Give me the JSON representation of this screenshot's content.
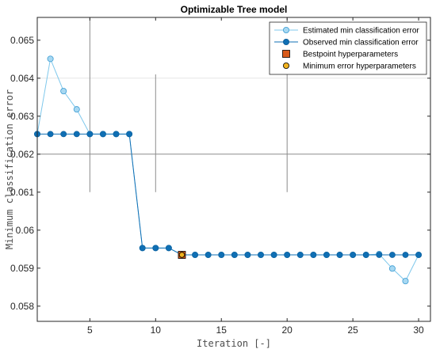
{
  "chart_data": {
    "type": "line",
    "title": "Optimizable Tree model",
    "xlabel": "Iteration [-]",
    "ylabel": "Minimum classification error",
    "xlim": [
      1,
      30.9
    ],
    "ylim": [
      0.0576,
      0.0656
    ],
    "xticks": [
      5,
      10,
      15,
      20,
      25,
      30
    ],
    "yticks": [
      0.058,
      0.059,
      0.06,
      0.061,
      0.062,
      0.063,
      0.064,
      0.065
    ],
    "ytick_labels": [
      "0.058",
      "0.059",
      "0.06",
      "0.061",
      "0.062",
      "0.063",
      "0.064",
      "0.065"
    ],
    "grid": false,
    "legend_position": "top-right",
    "series": [
      {
        "name": "Estimated min classification error",
        "color": "#7fc8ec",
        "x": [
          1,
          2,
          3,
          4,
          5,
          6,
          7,
          8,
          9,
          10,
          11,
          12,
          13,
          14,
          15,
          16,
          17,
          18,
          19,
          20,
          21,
          22,
          23,
          24,
          25,
          26,
          27,
          28,
          29,
          30
        ],
        "values": [
          0.06253,
          0.06451,
          0.06366,
          0.06318,
          0.06253,
          0.06253,
          0.06253,
          0.06253,
          0.05953,
          0.05953,
          0.05953,
          0.05935,
          0.05935,
          0.05935,
          0.05935,
          0.05935,
          0.05935,
          0.05935,
          0.05935,
          0.05935,
          0.05935,
          0.05935,
          0.05935,
          0.05935,
          0.05935,
          0.05935,
          0.05937,
          0.05899,
          0.05866,
          0.05935
        ]
      },
      {
        "name": "Observed min classification error",
        "color": "#0f6fb4",
        "x": [
          1,
          2,
          3,
          4,
          5,
          6,
          7,
          8,
          9,
          10,
          11,
          12,
          13,
          14,
          15,
          16,
          17,
          18,
          19,
          20,
          21,
          22,
          23,
          24,
          25,
          26,
          27,
          28,
          29,
          30
        ],
        "values": [
          0.06253,
          0.06253,
          0.06253,
          0.06253,
          0.06253,
          0.06253,
          0.06253,
          0.06253,
          0.05953,
          0.05953,
          0.05953,
          0.05935,
          0.05935,
          0.05935,
          0.05935,
          0.05935,
          0.05935,
          0.05935,
          0.05935,
          0.05935,
          0.05935,
          0.05935,
          0.05935,
          0.05935,
          0.05935,
          0.05935,
          0.05935,
          0.05935,
          0.05935,
          0.05935
        ]
      }
    ],
    "markers": [
      {
        "name": "Bestpoint hyperparameters",
        "shape": "square",
        "color": "#d85a1a",
        "x": 12,
        "y": 0.05935
      },
      {
        "name": "Minimum error hyperparameters",
        "shape": "circle",
        "color": "#f0b21f",
        "x": 12,
        "y": 0.05935
      }
    ],
    "reference_lines": {
      "vertical": [
        {
          "x": 5,
          "y_from": 0.061,
          "y_to": 0.0656
        },
        {
          "x": 10,
          "y_from": 0.061,
          "y_to": 0.0641
        },
        {
          "x": 20,
          "y_from": 0.061,
          "y_to": 0.0656
        }
      ],
      "horizontal": [
        {
          "y": 0.064,
          "color": "#e6e6e6"
        },
        {
          "y": 0.062,
          "color": "#8c8c8c"
        }
      ]
    }
  }
}
